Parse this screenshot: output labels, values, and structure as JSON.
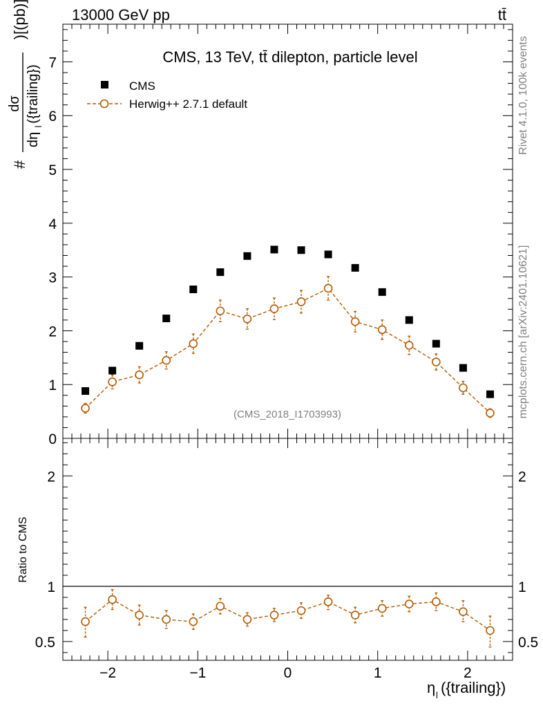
{
  "header": {
    "left_label": "13000 GeV pp",
    "right_label": "tt̄"
  },
  "side_labels": {
    "rivet": "Rivet 4.1.0,  100k events",
    "mcplots": "mcplots.cern.ch [arXiv:2401.10621]"
  },
  "chart_data": [
    {
      "type": "scatter",
      "title": "CMS, 13 TeV, tt̄ dilepton, particle level",
      "watermark": "(CMS_2018_I1703993)",
      "ylabel_parts": [
        "#",
        "dσ",
        "dη",
        "l",
        "({trailing})",
        ")[(pb)]"
      ],
      "xlabel_main": "η",
      "xlabel_sub": "l",
      "xlabel_tail": "({trailing})",
      "xlim": [
        -2.5,
        2.5
      ],
      "ylim": [
        0,
        7.7
      ],
      "yticks": [
        0,
        1,
        2,
        3,
        4,
        5,
        6,
        7
      ],
      "ytick_labels": [
        "0",
        "1",
        "2",
        "3",
        "4",
        "5",
        "6",
        "7"
      ],
      "x": [
        -2.25,
        -1.95,
        -1.65,
        -1.35,
        -1.05,
        -0.75,
        -0.45,
        -0.15,
        0.15,
        0.45,
        0.75,
        1.05,
        1.35,
        1.65,
        1.95,
        2.25
      ],
      "series": [
        {
          "name": "CMS",
          "color": "#000000",
          "marker": "square",
          "values": [
            0.88,
            1.26,
            1.72,
            2.23,
            2.77,
            3.09,
            3.39,
            3.51,
            3.5,
            3.42,
            3.17,
            2.72,
            2.2,
            1.76,
            1.31,
            0.82
          ]
        },
        {
          "name": "Herwig++ 2.7.1 default",
          "color": "#b35900",
          "marker": "circle",
          "linestyle": "dashed",
          "values": [
            0.56,
            1.05,
            1.18,
            1.45,
            1.76,
            2.37,
            2.22,
            2.41,
            2.54,
            2.79,
            2.17,
            2.02,
            1.73,
            1.42,
            0.94,
            0.47
          ],
          "errors": [
            0.09,
            0.13,
            0.15,
            0.16,
            0.18,
            0.2,
            0.19,
            0.2,
            0.21,
            0.22,
            0.19,
            0.18,
            0.17,
            0.15,
            0.12,
            0.08
          ]
        }
      ],
      "legend": [
        "CMS",
        "Herwig++ 2.7.1 default"
      ]
    },
    {
      "type": "line",
      "ylabel": "Ratio to CMS",
      "xlim": [
        -2.5,
        2.5
      ],
      "ylim": [
        0.33,
        2.34
      ],
      "xticks": [
        -2,
        -1,
        0,
        1,
        2
      ],
      "xtick_labels": [
        "−2",
        "−1",
        "0",
        "1",
        "2"
      ],
      "yticks": [
        0.5,
        1,
        2
      ],
      "ytick_labels": [
        "0.5",
        "1",
        "2"
      ],
      "reference_line": 1,
      "x": [
        -2.25,
        -1.95,
        -1.65,
        -1.35,
        -1.05,
        -0.75,
        -0.45,
        -0.15,
        0.15,
        0.45,
        0.75,
        1.05,
        1.35,
        1.65,
        1.95,
        2.25
      ],
      "series": [
        {
          "name": "Herwig++ 2.7.1 default / CMS",
          "color": "#b35900",
          "values": [
            0.68,
            0.88,
            0.74,
            0.7,
            0.68,
            0.82,
            0.7,
            0.74,
            0.78,
            0.86,
            0.74,
            0.8,
            0.84,
            0.86,
            0.77,
            0.6
          ],
          "err_low": [
            0.14,
            0.09,
            0.09,
            0.08,
            0.07,
            0.07,
            0.06,
            0.06,
            0.07,
            0.07,
            0.07,
            0.07,
            0.07,
            0.08,
            0.09,
            0.15
          ],
          "err_high": [
            0.13,
            0.09,
            0.09,
            0.08,
            0.07,
            0.07,
            0.06,
            0.06,
            0.07,
            0.06,
            0.07,
            0.07,
            0.07,
            0.08,
            0.1,
            0.13
          ]
        }
      ]
    }
  ]
}
